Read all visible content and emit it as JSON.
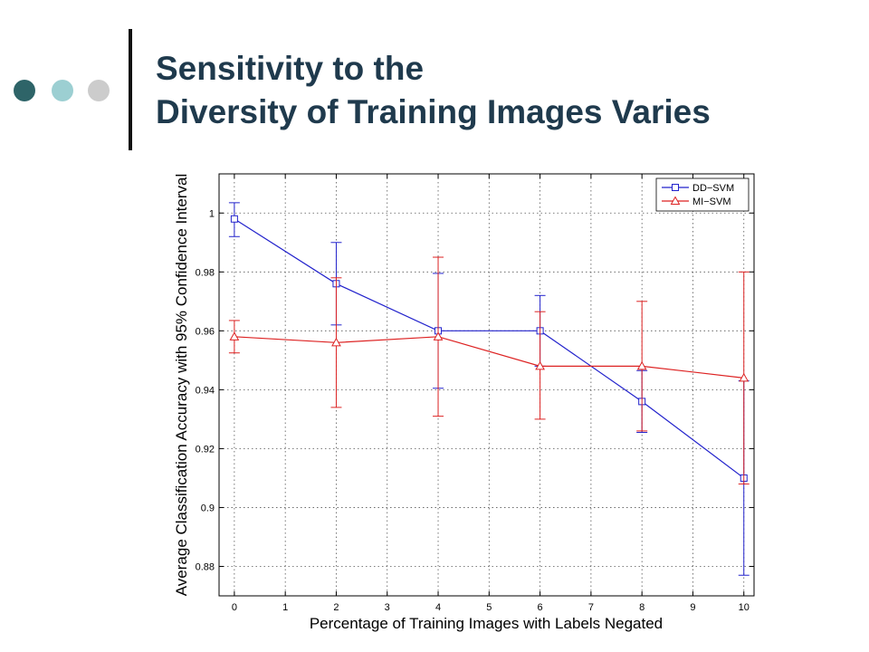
{
  "slide": {
    "title_line1": "Sensitivity to the",
    "title_line2": "Diversity of Training Images Varies",
    "title_color": "#1f3a4d",
    "bullet_colors": [
      "#2e6468",
      "#9ccfd2",
      "#cccccc"
    ]
  },
  "chart_data": {
    "type": "line",
    "title": "",
    "xlabel": "Percentage of Training Images with Labels Negated",
    "ylabel": "Average Classification Accuracy with 95% Confidence Interval",
    "xlim": [
      -0.3,
      10.2
    ],
    "ylim": [
      0.87,
      1.0133
    ],
    "x_ticks": [
      0,
      1,
      2,
      3,
      4,
      5,
      6,
      7,
      8,
      9,
      10
    ],
    "y_ticks": [
      0.88,
      0.9,
      0.92,
      0.94,
      0.96,
      0.98,
      1.0
    ],
    "x_tick_labels": [
      "0",
      "1",
      "2",
      "3",
      "4",
      "5",
      "6",
      "7",
      "8",
      "9",
      "10"
    ],
    "y_tick_labels": [
      "0.88",
      "0.9",
      "0.92",
      "0.94",
      "0.96",
      "0.98",
      "1"
    ],
    "grid": true,
    "legend_position": "top-right",
    "series": [
      {
        "name": "DD−SVM",
        "color": "#2222cc",
        "marker": "square",
        "x": [
          0,
          2,
          4,
          6,
          8,
          10
        ],
        "y": [
          0.998,
          0.976,
          0.96,
          0.96,
          0.936,
          0.91
        ],
        "err_low": [
          0.992,
          0.962,
          0.9405,
          0.948,
          0.9255,
          0.877
        ],
        "err_high": [
          1.0035,
          0.99,
          0.9795,
          0.972,
          0.9465,
          0.943
        ]
      },
      {
        "name": "MI−SVM",
        "color": "#dd2222",
        "marker": "triangle",
        "x": [
          0,
          2,
          4,
          6,
          8,
          10
        ],
        "y": [
          0.958,
          0.956,
          0.958,
          0.948,
          0.948,
          0.944
        ],
        "err_low": [
          0.9525,
          0.934,
          0.931,
          0.93,
          0.926,
          0.908
        ],
        "err_high": [
          0.9635,
          0.978,
          0.985,
          0.9665,
          0.97,
          0.98
        ]
      }
    ]
  }
}
